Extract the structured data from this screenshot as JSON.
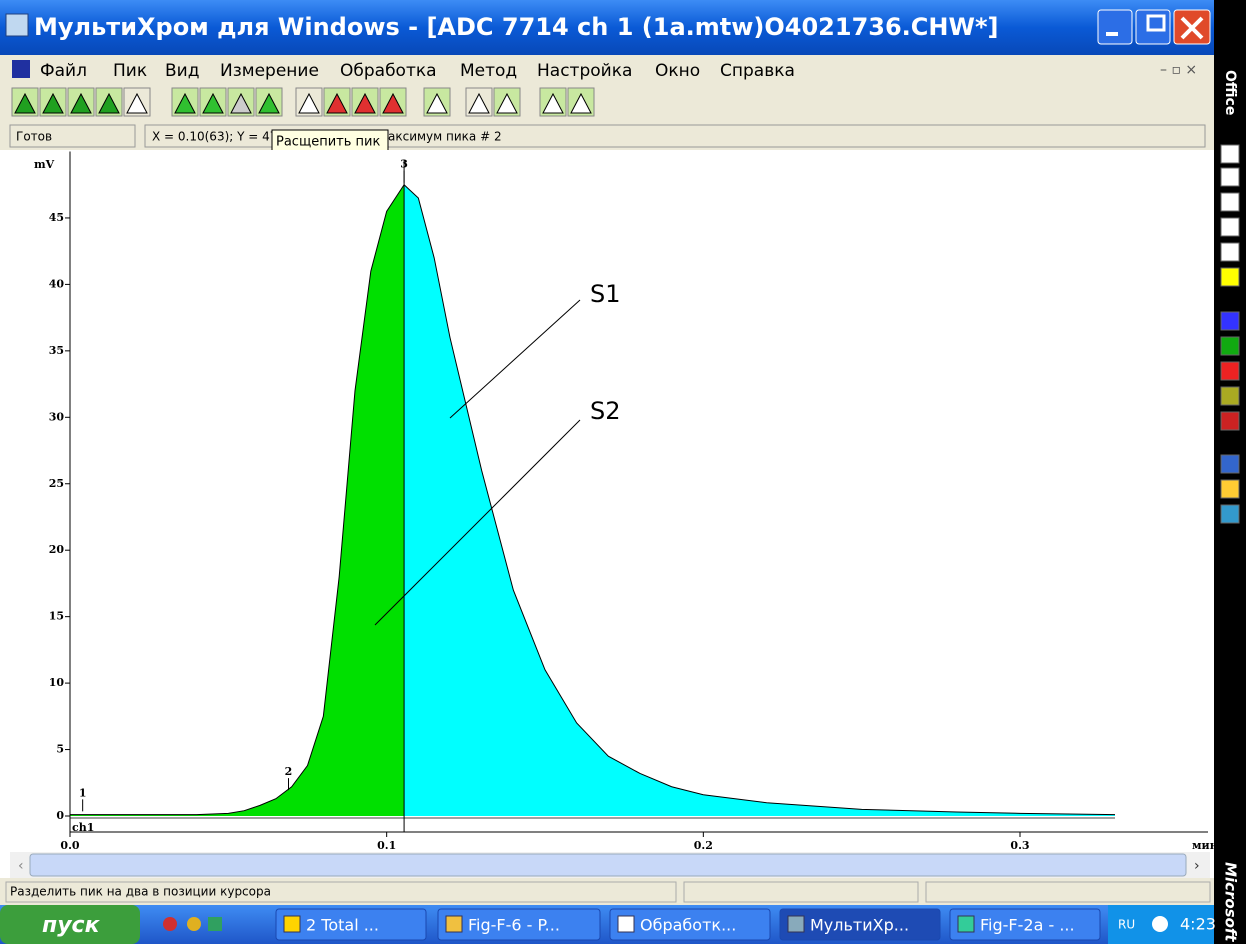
{
  "window": {
    "title": "МультиХром для Windows - [ADC 7714 ch 1 (1a.mtw)O4021736.CHW*]",
    "menu": [
      "Файл",
      "Пик",
      "Вид",
      "Измерение",
      "Обработка",
      "Метод",
      "Настройка",
      "Окно",
      "Справка"
    ]
  },
  "status_top": {
    "state": "Готов",
    "coords": "X = 0.10(63); Y = 47.",
    "tooltip": "Расщепить пик",
    "info": "аксимум пика # 2"
  },
  "chart_data": {
    "type": "area",
    "ylabel": "mV",
    "xlabel": "мин",
    "channel": "ch1",
    "xlim": [
      0,
      0.36
    ],
    "ylim": [
      0,
      50
    ],
    "xticks": [
      {
        "value": 0,
        "label": "0.0"
      },
      0.1,
      0.2,
      0.3
    ],
    "yticks": [
      0,
      5,
      10,
      15,
      20,
      25,
      30,
      35,
      40,
      45
    ],
    "series": [
      {
        "name": "S1",
        "color": "#00ffff",
        "x": [
          0.1055,
          0.11,
          0.115,
          0.12,
          0.13,
          0.14,
          0.15,
          0.16,
          0.17,
          0.18,
          0.19,
          0.2,
          0.22,
          0.25,
          0.28,
          0.3,
          0.33
        ],
        "values": [
          47.5,
          46.5,
          42,
          36,
          26,
          17,
          11,
          7,
          4.5,
          3.2,
          2.2,
          1.6,
          1,
          0.5,
          0.3,
          0.2,
          0.1
        ]
      },
      {
        "name": "S2",
        "color": "#00e000",
        "x": [
          0,
          0.01,
          0.02,
          0.03,
          0.04,
          0.05,
          0.055,
          0.06,
          0.065,
          0.07,
          0.075,
          0.08,
          0.085,
          0.09,
          0.095,
          0.1,
          0.1055
        ],
        "values": [
          0.1,
          0.1,
          0.1,
          0.1,
          0.1,
          0.2,
          0.4,
          0.8,
          1.3,
          2.2,
          3.8,
          7.5,
          18,
          32,
          41,
          45.5,
          47.5
        ]
      }
    ],
    "peaks": [
      {
        "label": "1",
        "x": 0.004,
        "y": 0.2
      },
      {
        "label": "2",
        "x": 0.069,
        "y": 1.8
      },
      {
        "label": "3",
        "x": 0.1055,
        "y": 47.5
      }
    ]
  },
  "status_bar": "Разделить пик на два в позиции курсора",
  "taskbar": {
    "start": "пуск",
    "tasks": [
      "2 Total ...",
      "Fig-F-6 - P...",
      "Обработк...",
      "МультиХр...",
      "Fig-F-2a - ..."
    ],
    "lang": "RU",
    "clock": "4:23"
  },
  "office_bar": {
    "top": "Office",
    "bottom": "Microsoft"
  }
}
